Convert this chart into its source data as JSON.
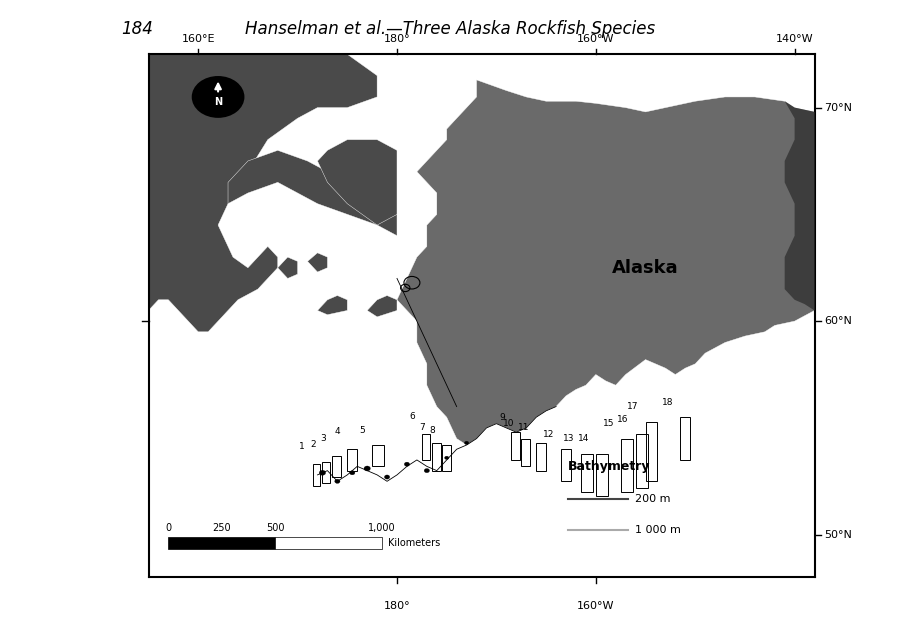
{
  "title_page_num": "184",
  "title_text": "Hanselman et al.—Three Alaska Rockfish Species",
  "title_fontsize": 12,
  "background_color": "#ffffff",
  "map_bg_color": "#ffffff",
  "land_color_dark": "#4a4a4a",
  "land_color_alaska": "#6a6a6a",
  "land_color_se": "#3a3a3a",
  "ocean_color": "#ffffff",
  "map_border_color": "#000000",
  "top_ticks": [
    "160°E",
    "180°",
    "160°W",
    "140°W"
  ],
  "right_ticks": [
    "70°N",
    "60°N",
    "50°N"
  ],
  "bottom_ticks": [
    "180°",
    "160°W"
  ],
  "alaska_label": "Alaska",
  "bathymetry_title": "Bathymetry",
  "bathymetry_200m": "200 m",
  "bathymetry_1000m": "1 000 m",
  "block_numbers": [
    "1",
    "2",
    "3",
    "4",
    "5",
    "6",
    "7",
    "8",
    "9",
    "10",
    "11",
    "12",
    "13",
    "14",
    "15",
    "16",
    "17",
    "18"
  ],
  "fig_width": 9.0,
  "fig_height": 6.38
}
